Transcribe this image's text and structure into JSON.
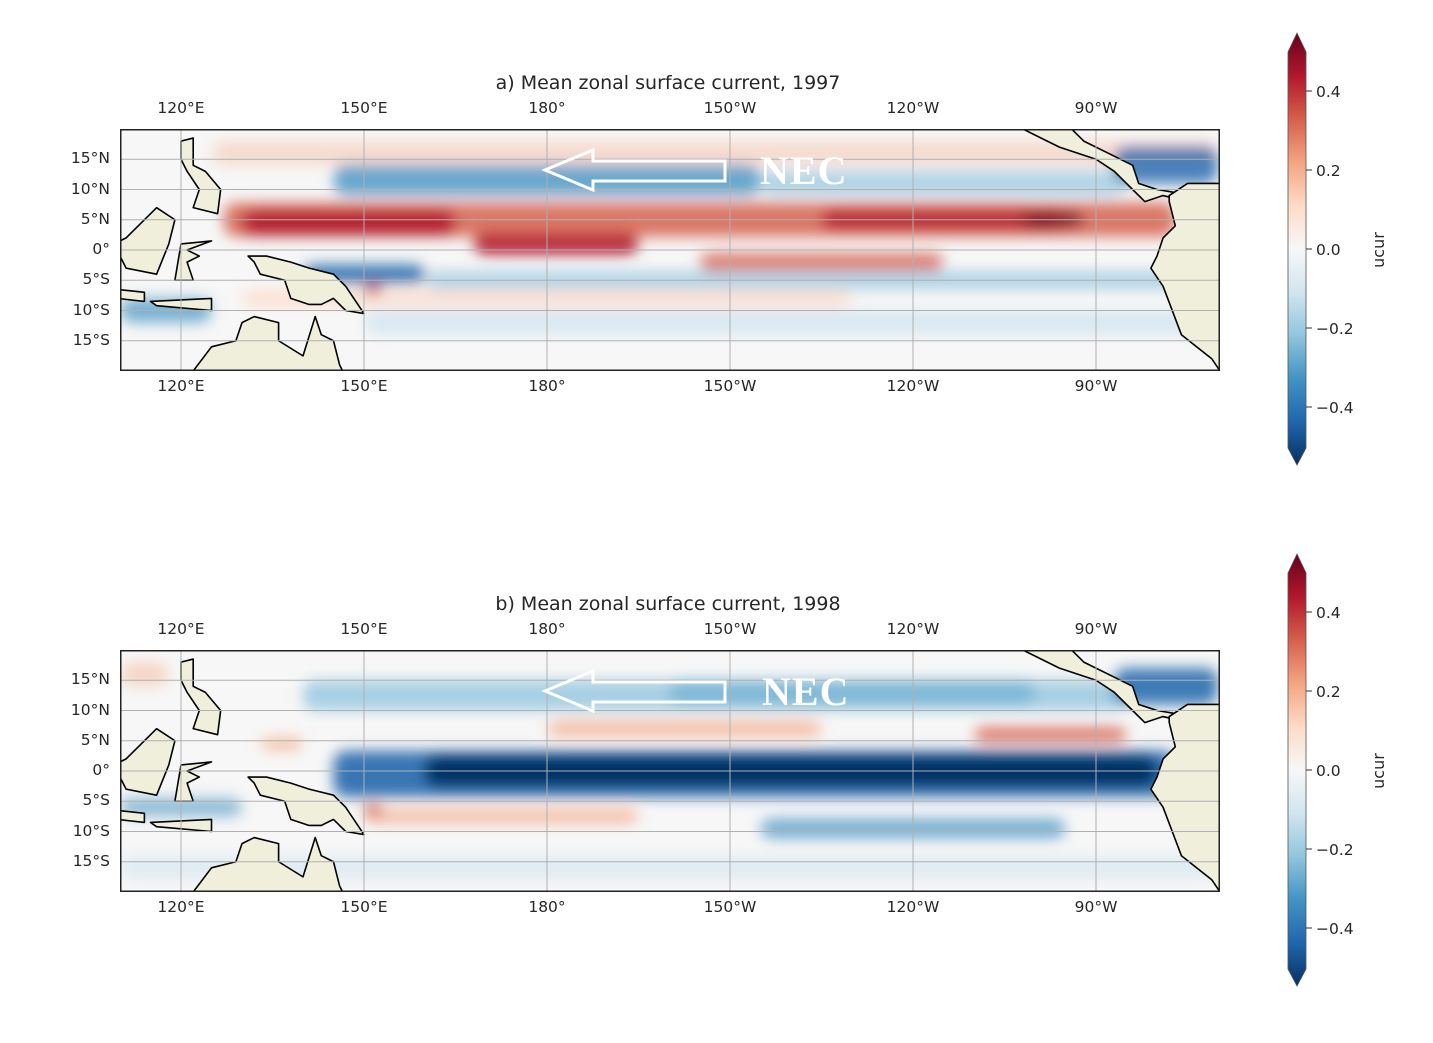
{
  "panels": [
    {
      "title": "a) Mean zonal surface current, 1997",
      "annotation": "NEC"
    },
    {
      "title": "b) Mean zonal surface current, 1998",
      "annotation": "NEC"
    }
  ],
  "lon_ticks": [
    "120°E",
    "150°E",
    "180°",
    "150°W",
    "120°W",
    "90°W"
  ],
  "lat_ticks": [
    "15°N",
    "10°N",
    "5°N",
    "0°",
    "5°S",
    "10°S",
    "15°S"
  ],
  "colorbar": {
    "label": "ucur",
    "ticks": [
      "0.4",
      "0.2",
      "0.0",
      "−0.2",
      "−0.4"
    ],
    "colors": [
      "#67001f",
      "#b2182b",
      "#d6604d",
      "#f4a582",
      "#fddbc7",
      "#f7f7f7",
      "#d1e5f0",
      "#92c5de",
      "#4393c3",
      "#2166ac",
      "#053061"
    ]
  }
}
